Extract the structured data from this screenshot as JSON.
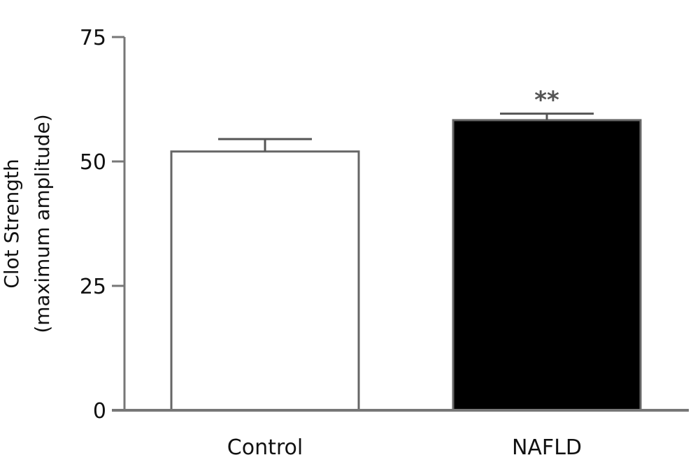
{
  "chart_data": {
    "type": "bar",
    "categories": [
      "Control",
      "NAFLD"
    ],
    "values": [
      52,
      58.3
    ],
    "errors": [
      2.5,
      1.3
    ],
    "annotations": [
      "",
      "**"
    ],
    "bar_fill_colors": [
      "#ffffff",
      "#000000"
    ],
    "bar_stroke_color": "#666666",
    "axis_color": "#777777",
    "ylabel": [
      "Clot Strength",
      "(maximum amplitude)"
    ],
    "xlabel": "",
    "ylim": [
      0,
      75
    ],
    "yticks": [
      0,
      25,
      50,
      75
    ],
    "grid": false
  }
}
